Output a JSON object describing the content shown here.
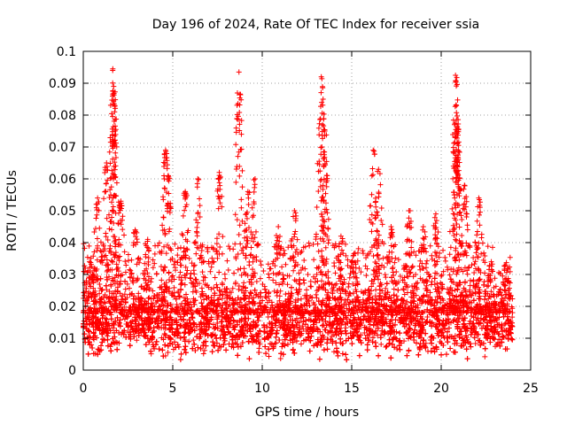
{
  "chart_data": {
    "type": "scatter",
    "title": "Day 196 of 2024, Rate Of TEC Index for receiver ssia",
    "xlabel": "GPS time / hours",
    "ylabel": "ROTI / TECUs",
    "xlim": [
      0,
      25
    ],
    "ylim": [
      0,
      0.1
    ],
    "xticks": [
      "0",
      "5",
      "10",
      "15",
      "20",
      "25"
    ],
    "xtick_values": [
      0,
      5,
      10,
      15,
      20,
      25
    ],
    "yticks": [
      "0",
      "0.01",
      "0.02",
      "0.03",
      "0.04",
      "0.05",
      "0.06",
      "0.07",
      "0.08",
      "0.09",
      "0.1"
    ],
    "ytick_values": [
      0,
      0.01,
      0.02,
      0.03,
      0.04,
      0.05,
      0.06,
      0.07,
      0.08,
      0.09,
      0.1
    ],
    "grid": true,
    "marker": "+",
    "color": "#ff0000",
    "series": [
      {
        "name": "ROTI",
        "peaks": [
          {
            "x": 0.35,
            "y": 0.034
          },
          {
            "x": 0.8,
            "y": 0.054
          },
          {
            "x": 1.3,
            "y": 0.065
          },
          {
            "x": 1.65,
            "y": 0.0945
          },
          {
            "x": 1.7,
            "y": 0.089
          },
          {
            "x": 1.75,
            "y": 0.081
          },
          {
            "x": 2.1,
            "y": 0.053
          },
          {
            "x": 2.9,
            "y": 0.044
          },
          {
            "x": 3.6,
            "y": 0.041
          },
          {
            "x": 4.6,
            "y": 0.069
          },
          {
            "x": 4.75,
            "y": 0.061
          },
          {
            "x": 5.7,
            "y": 0.056
          },
          {
            "x": 6.4,
            "y": 0.06
          },
          {
            "x": 7.6,
            "y": 0.062
          },
          {
            "x": 8.7,
            "y": 0.0935
          },
          {
            "x": 9.2,
            "y": 0.056
          },
          {
            "x": 9.6,
            "y": 0.06
          },
          {
            "x": 10.9,
            "y": 0.045
          },
          {
            "x": 11.8,
            "y": 0.05
          },
          {
            "x": 13.3,
            "y": 0.092
          },
          {
            "x": 13.4,
            "y": 0.085
          },
          {
            "x": 13.5,
            "y": 0.075
          },
          {
            "x": 14.4,
            "y": 0.042
          },
          {
            "x": 15.1,
            "y": 0.036
          },
          {
            "x": 16.2,
            "y": 0.069
          },
          {
            "x": 16.5,
            "y": 0.063
          },
          {
            "x": 17.2,
            "y": 0.045
          },
          {
            "x": 18.2,
            "y": 0.05
          },
          {
            "x": 19.0,
            "y": 0.045
          },
          {
            "x": 19.7,
            "y": 0.049
          },
          {
            "x": 20.8,
            "y": 0.0925
          },
          {
            "x": 20.85,
            "y": 0.083
          },
          {
            "x": 20.9,
            "y": 0.076
          },
          {
            "x": 20.95,
            "y": 0.0665
          },
          {
            "x": 21.3,
            "y": 0.058
          },
          {
            "x": 22.1,
            "y": 0.054
          },
          {
            "x": 22.8,
            "y": 0.034
          },
          {
            "x": 23.6,
            "y": 0.033
          }
        ],
        "baseline": {
          "x_range": [
            0,
            24
          ],
          "typical_y": [
            0.005,
            0.025
          ],
          "median_y": 0.014
        }
      }
    ]
  }
}
